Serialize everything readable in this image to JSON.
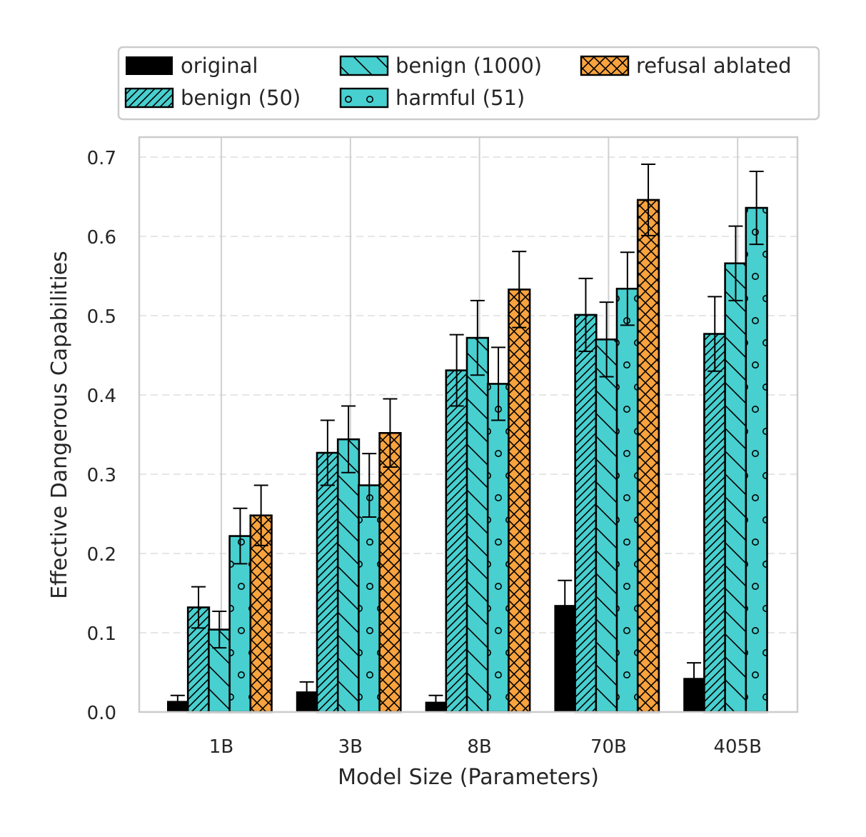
{
  "chart_data": {
    "type": "bar",
    "title": "",
    "xlabel": "Model Size (Parameters)",
    "ylabel": "Effective Dangerous Capabilities",
    "categories": [
      "1B",
      "3B",
      "8B",
      "70B",
      "405B"
    ],
    "ylim": [
      0,
      0.72
    ],
    "yticks": [
      0.0,
      0.1,
      0.2,
      0.3,
      0.4,
      0.5,
      0.6,
      0.7
    ],
    "ytick_labels": [
      "0.0",
      "0.1",
      "0.2",
      "0.3",
      "0.4",
      "0.5",
      "0.6",
      "0.7"
    ],
    "grid": true,
    "legend_position": "top, outside plot",
    "series": [
      {
        "name": "original",
        "color": "#000000",
        "hatch": "none",
        "values": [
          0.014,
          0.026,
          0.013,
          0.135,
          0.043
        ],
        "errors": [
          0.007,
          0.012,
          0.008,
          0.031,
          0.019
        ]
      },
      {
        "name": "benign (50)",
        "color": "#48CFCF",
        "hatch": "diagonal",
        "values": [
          0.132,
          0.327,
          0.431,
          0.501,
          0.477
        ],
        "errors": [
          0.026,
          0.041,
          0.045,
          0.046,
          0.047
        ]
      },
      {
        "name": "benign (1000)",
        "color": "#48CFCF",
        "hatch": "backslash",
        "values": [
          0.104,
          0.344,
          0.472,
          0.47,
          0.566
        ],
        "errors": [
          0.023,
          0.042,
          0.047,
          0.047,
          0.047
        ]
      },
      {
        "name": "harmful (51)",
        "color": "#48CFCF",
        "hatch": "circles",
        "values": [
          0.222,
          0.286,
          0.414,
          0.534,
          0.636
        ],
        "errors": [
          0.035,
          0.04,
          0.046,
          0.046,
          0.046
        ]
      },
      {
        "name": "refusal ablated",
        "color": "#F8A33E",
        "hatch": "crosshatch",
        "values": [
          0.248,
          0.352,
          0.533,
          0.646,
          null
        ],
        "errors": [
          0.038,
          0.043,
          0.048,
          0.045,
          null
        ]
      }
    ]
  }
}
